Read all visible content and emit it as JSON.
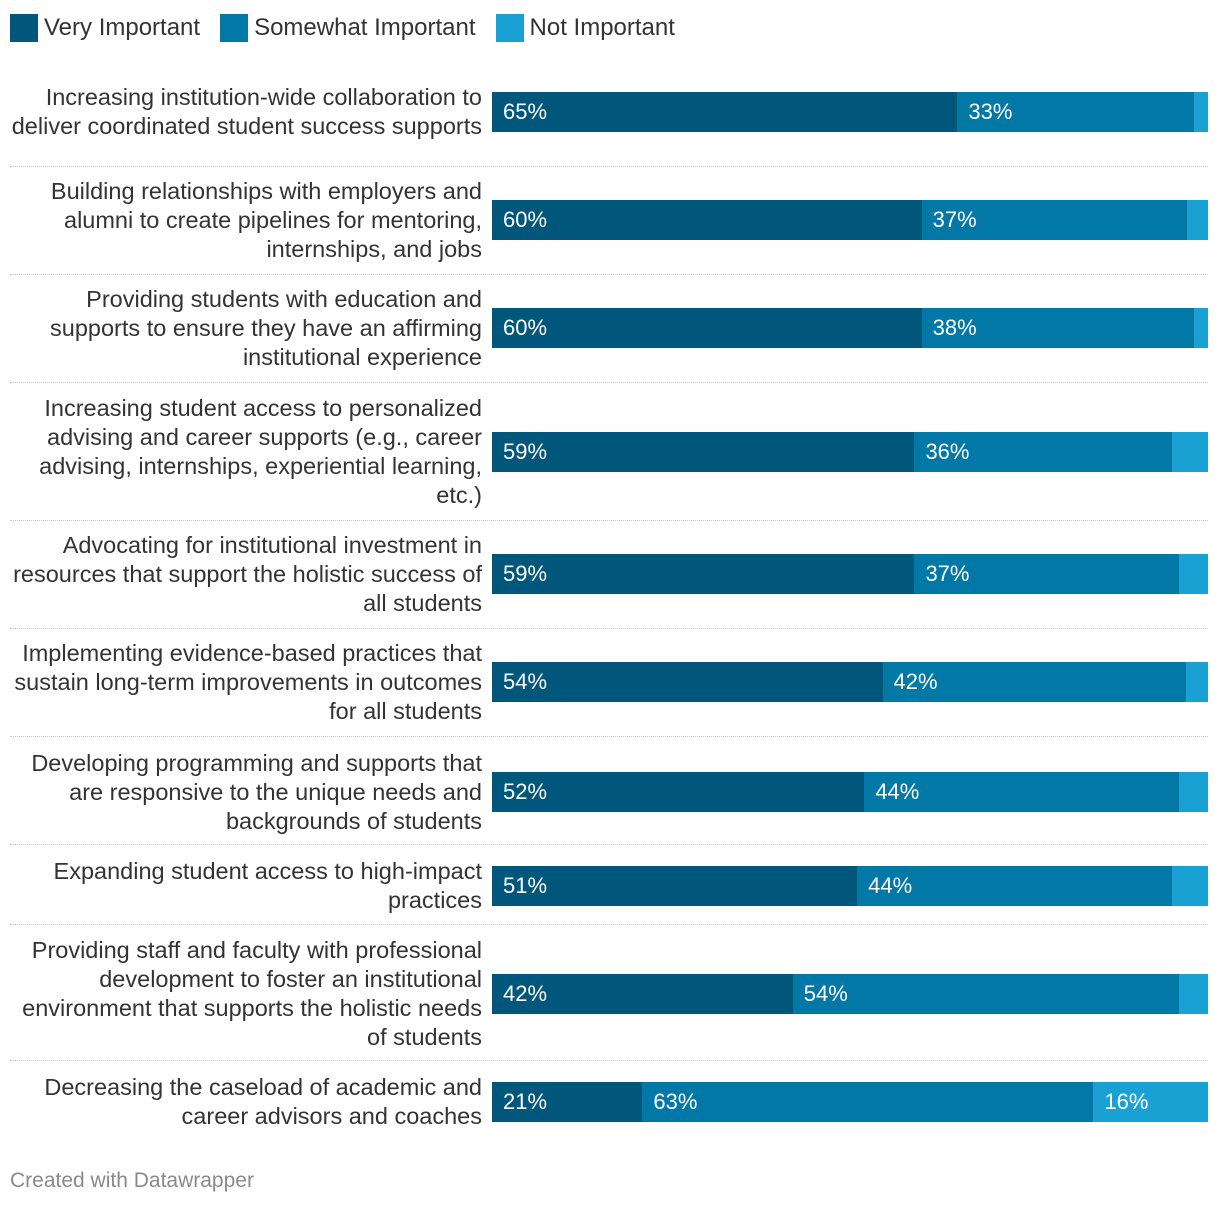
{
  "legend": [
    {
      "label": "Very Important",
      "color": "#00567b"
    },
    {
      "label": "Somewhat Important",
      "color": "#0178a5"
    },
    {
      "label": "Not Important",
      "color": "#1aa1d3"
    }
  ],
  "chart_data": {
    "type": "bar",
    "orientation": "horizontal",
    "stacked": true,
    "categories": [
      "Increasing institution-wide collaboration to deliver coordinated student success supports",
      "Building relationships with employers and alumni to create pipelines for mentoring, internships, and jobs",
      "Providing students with education and supports to ensure they have an affirming institutional experience",
      "Increasing student access to personalized advising and career supports (e.g., career advising, internships, experiential learning, etc.)",
      "Advocating for institutional investment in resources that support the holistic success of all students",
      "Implementing evidence-based practices that sustain long-term improvements in outcomes for all students",
      "Developing programming and supports that are responsive to the unique needs and backgrounds of students",
      "Expanding student access to high-impact practices",
      "Providing staff and faculty with professional development to foster an institutional environment that supports the holistic needs of students",
      "Decreasing the caseload of academic and career advisors and coaches"
    ],
    "series": [
      {
        "name": "Very Important",
        "values": [
          65,
          60,
          60,
          59,
          59,
          54,
          52,
          51,
          42,
          21
        ]
      },
      {
        "name": "Somewhat Important",
        "values": [
          33,
          37,
          38,
          36,
          37,
          42,
          44,
          44,
          54,
          63
        ]
      },
      {
        "name": "Not Important",
        "values": [
          2,
          3,
          2,
          5,
          4,
          3,
          4,
          5,
          4,
          16
        ]
      }
    ],
    "value_labels": [
      [
        "65%",
        "33%",
        ""
      ],
      [
        "60%",
        "37%",
        ""
      ],
      [
        "60%",
        "38%",
        ""
      ],
      [
        "59%",
        "36%",
        ""
      ],
      [
        "59%",
        "37%",
        ""
      ],
      [
        "54%",
        "42%",
        ""
      ],
      [
        "52%",
        "44%",
        ""
      ],
      [
        "51%",
        "44%",
        ""
      ],
      [
        "42%",
        "54%",
        ""
      ],
      [
        "21%",
        "63%",
        "16%"
      ]
    ],
    "legend_position": "top-left"
  },
  "footer": {
    "credit": "Created with Datawrapper"
  }
}
